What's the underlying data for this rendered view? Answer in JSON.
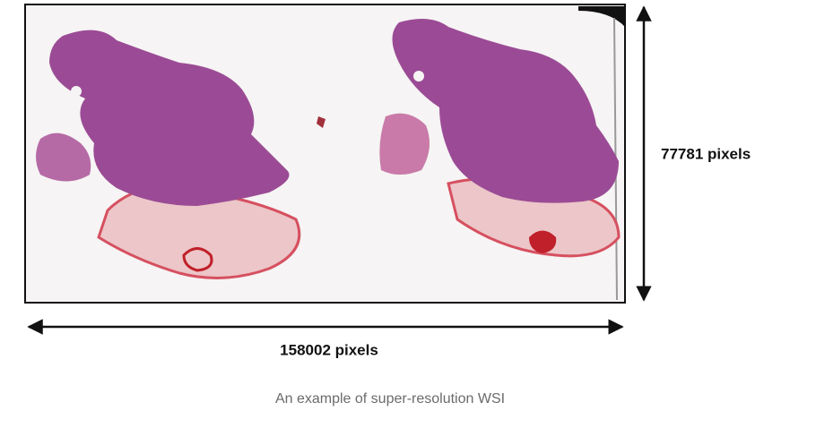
{
  "figure": {
    "height_label": "77781 pixels",
    "width_label": "158002 pixels"
  },
  "caption": "An example of super-resolution WSI"
}
